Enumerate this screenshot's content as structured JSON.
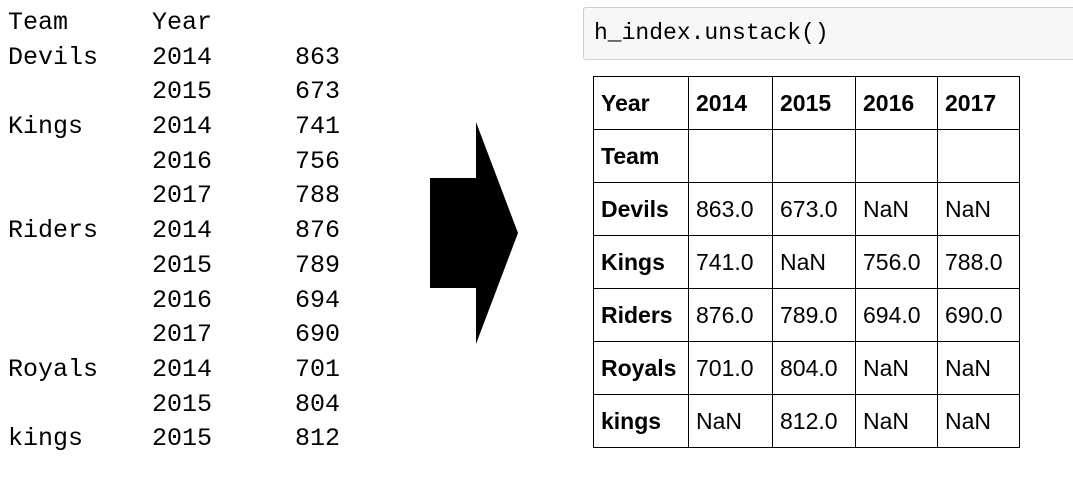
{
  "series_output": {
    "header": {
      "team": "Team",
      "year": "Year"
    },
    "rows": [
      {
        "team": "Devils",
        "year": "2014",
        "value": "863"
      },
      {
        "team": "",
        "year": "2015",
        "value": "673"
      },
      {
        "team": "Kings",
        "year": "2014",
        "value": "741"
      },
      {
        "team": "",
        "year": "2016",
        "value": "756"
      },
      {
        "team": "",
        "year": "2017",
        "value": "788"
      },
      {
        "team": "Riders",
        "year": "2014",
        "value": "876"
      },
      {
        "team": "",
        "year": "2015",
        "value": "789"
      },
      {
        "team": "",
        "year": "2016",
        "value": "694"
      },
      {
        "team": "",
        "year": "2017",
        "value": "690"
      },
      {
        "team": "Royals",
        "year": "2014",
        "value": "701"
      },
      {
        "team": "",
        "year": "2015",
        "value": "804"
      },
      {
        "team": "kings",
        "year": "2015",
        "value": "812"
      }
    ]
  },
  "arrow": {
    "icon": "right-arrow-icon",
    "color": "#000000"
  },
  "code_cell": {
    "code": "h_index.unstack()"
  },
  "dataframe": {
    "columns_label": "Year",
    "columns": [
      "2014",
      "2015",
      "2016",
      "2017"
    ],
    "index_label": "Team",
    "rows": [
      {
        "index": "Devils",
        "values": [
          "863.0",
          "673.0",
          "NaN",
          "NaN"
        ]
      },
      {
        "index": "Kings",
        "values": [
          "741.0",
          "NaN",
          "756.0",
          "788.0"
        ]
      },
      {
        "index": "Riders",
        "values": [
          "876.0",
          "789.0",
          "694.0",
          "690.0"
        ]
      },
      {
        "index": "Royals",
        "values": [
          "701.0",
          "804.0",
          "NaN",
          "NaN"
        ]
      },
      {
        "index": "kings",
        "values": [
          "NaN",
          "812.0",
          "NaN",
          "NaN"
        ]
      }
    ]
  }
}
